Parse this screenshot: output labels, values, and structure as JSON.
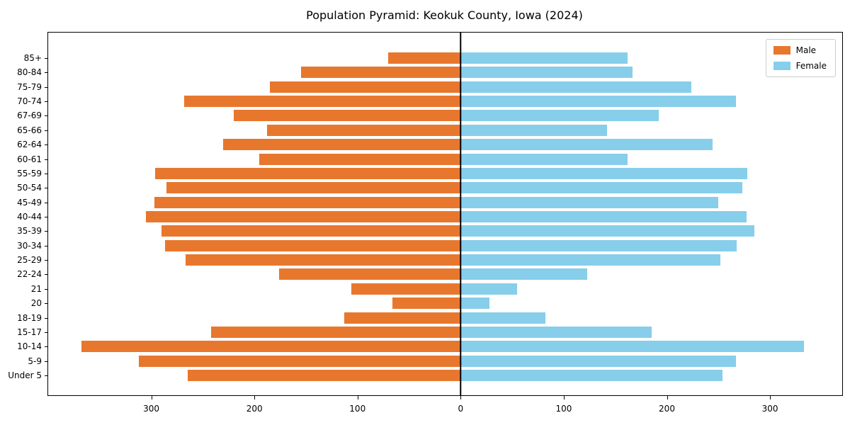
{
  "chart_data": {
    "type": "bar",
    "subtype": "population-pyramid",
    "orientation": "horizontal",
    "title": "Population Pyramid: Keokuk County, Iowa (2024)",
    "grid": false,
    "legend_position": "upper right",
    "categories": [
      "85+",
      "80-84",
      "75-79",
      "70-74",
      "67-69",
      "65-66",
      "62-64",
      "60-61",
      "55-59",
      "50-54",
      "45-49",
      "40-44",
      "35-39",
      "30-34",
      "25-29",
      "22-24",
      "21",
      "20",
      "18-19",
      "15-17",
      "10-14",
      "5-9",
      "Under 5"
    ],
    "series": [
      {
        "name": "Male",
        "color": "#e8772e",
        "direction": "left",
        "values": [
          70,
          155,
          185,
          268,
          220,
          188,
          230,
          195,
          296,
          285,
          297,
          305,
          290,
          287,
          267,
          176,
          106,
          66,
          113,
          242,
          368,
          312,
          265
        ]
      },
      {
        "name": "Female",
        "color": "#87ceeb",
        "direction": "right",
        "values": [
          162,
          167,
          224,
          267,
          192,
          142,
          244,
          162,
          278,
          273,
          250,
          277,
          285,
          268,
          252,
          123,
          55,
          28,
          82,
          185,
          333,
          267,
          254
        ]
      }
    ],
    "x_ticks": [
      "300",
      "200",
      "100",
      "0",
      "100",
      "200",
      "300"
    ],
    "x_tick_values": [
      -300,
      -200,
      -100,
      0,
      100,
      200,
      300
    ],
    "xlim_male": 400,
    "xlim_female": 370
  },
  "colors": {
    "male": "#e8772e",
    "female": "#87ceeb",
    "axis": "#000000",
    "background": "#ffffff"
  }
}
